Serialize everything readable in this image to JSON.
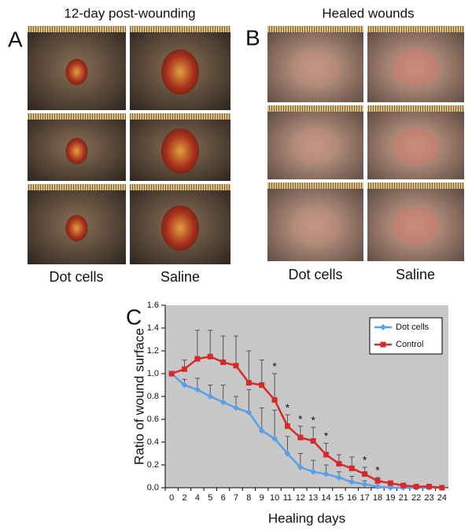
{
  "panels": {
    "a": {
      "letter": "A",
      "title": "12-day post-wounding",
      "labels": [
        "Dot cells",
        "Saline"
      ]
    },
    "b": {
      "letter": "B",
      "title": "Healed wounds",
      "labels": [
        "Dot cells",
        "Saline"
      ]
    }
  },
  "chart_data": {
    "type": "line",
    "letter": "C",
    "x_label": "Healing days",
    "y_label": "Ratio of wound surface",
    "categories": [
      "0",
      "2",
      "4",
      "5",
      "6",
      "7",
      "8",
      "9",
      "10",
      "11",
      "12",
      "13",
      "14",
      "15",
      "16",
      "17",
      "18",
      "19",
      "21",
      "22",
      "23",
      "24"
    ],
    "series": [
      {
        "name": "Dot cells",
        "color": "#5aa0e6",
        "marker": "diamond",
        "values": [
          1.0,
          0.9,
          0.86,
          0.8,
          0.75,
          0.7,
          0.66,
          0.5,
          0.43,
          0.3,
          0.18,
          0.14,
          0.12,
          0.09,
          0.05,
          0.03,
          0.01,
          0,
          0,
          0,
          0,
          0
        ],
        "errors": [
          0,
          0.05,
          0.1,
          0.1,
          0.15,
          0.1,
          0.2,
          0.2,
          0.25,
          0.15,
          0.12,
          0.1,
          0.08,
          0.05,
          0.05,
          0.03,
          0,
          0,
          0,
          0,
          0,
          0
        ]
      },
      {
        "name": "Control",
        "color": "#d42a2a",
        "marker": "square",
        "values": [
          1.0,
          1.04,
          1.13,
          1.15,
          1.1,
          1.07,
          0.92,
          0.9,
          0.77,
          0.54,
          0.44,
          0.41,
          0.29,
          0.21,
          0.17,
          0.12,
          0.06,
          0.04,
          0.02,
          0.01,
          0.01,
          0
        ],
        "errors": [
          0,
          0.08,
          0.25,
          0.23,
          0.23,
          0.26,
          0.28,
          0.22,
          0.23,
          0.1,
          0.1,
          0.12,
          0.1,
          0.08,
          0.1,
          0.06,
          0.03,
          0.02,
          0.01,
          0,
          0,
          0
        ]
      }
    ],
    "annotations": [
      {
        "text": "*",
        "x": "10"
      },
      {
        "text": "*",
        "x": "11"
      },
      {
        "text": "*",
        "x": "12"
      },
      {
        "text": "*",
        "x": "13"
      },
      {
        "text": "*",
        "x": "14"
      },
      {
        "text": "*",
        "x": "17"
      },
      {
        "text": "*",
        "x": "18"
      }
    ],
    "ylim": [
      0,
      1.6
    ],
    "yticks": [
      {
        "value": 0,
        "label": "0.0"
      },
      {
        "value": 0.2,
        "label": "0.2"
      },
      {
        "value": 0.4,
        "label": "0.4"
      },
      {
        "value": 0.6,
        "label": "0.6"
      },
      {
        "value": 0.8,
        "label": "0.8"
      },
      {
        "value": 1,
        "label": "1.0"
      },
      {
        "value": 1.2,
        "label": "1.2"
      },
      {
        "value": 1.4,
        "label": "1.4"
      },
      {
        "value": 1.6,
        "label": "1.6"
      }
    ],
    "grid": false,
    "background": "#c8c8c8",
    "legend": "upper right"
  }
}
